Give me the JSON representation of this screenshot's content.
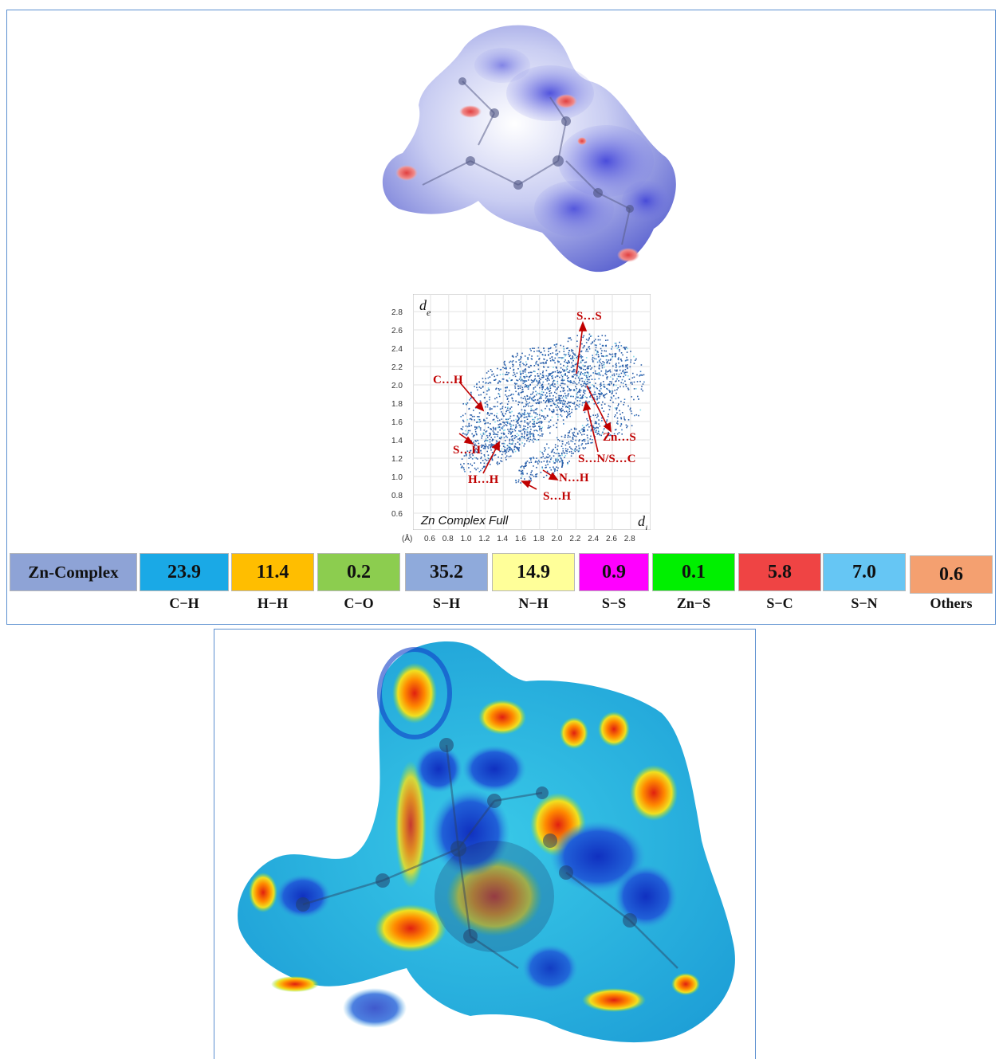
{
  "fingerprint": {
    "title": "Zn Complex Full",
    "de_label": "d",
    "de_sub": "e",
    "di_label": "d",
    "di_sub": "i",
    "unit": "(Å)",
    "y_ticks": [
      "2.8",
      "2.6",
      "2.4",
      "2.2",
      "2.0",
      "1.8",
      "1.6",
      "1.4",
      "1.2",
      "1.0",
      "0.8",
      "0.6"
    ],
    "x_ticks": [
      "0.6",
      "0.8",
      "1.0",
      "1.2",
      "1.4",
      "1.6",
      "1.8",
      "2.0",
      "2.2",
      "2.4",
      "2.6",
      "2.8"
    ],
    "annotations": [
      "S…S",
      "C…H",
      "Zn…S",
      "S…H",
      "S…N/S…C",
      "H…H",
      "N…H",
      "S…H"
    ]
  },
  "legend": {
    "row_label": "Zn-Complex",
    "cells": [
      {
        "value": "23.9",
        "label": "C−H",
        "color": "#1aa9e6"
      },
      {
        "value": "11.4",
        "label": "H−H",
        "color": "#ffbe00"
      },
      {
        "value": "0.2",
        "label": "C−O",
        "color": "#8ccd4f"
      },
      {
        "value": "35.2",
        "label": "S−H",
        "color": "#8faadb"
      },
      {
        "value": "14.9",
        "label": "N−H",
        "color": "#ffff99"
      },
      {
        "value": "0.9",
        "label": "S−S",
        "color": "#ff00ff"
      },
      {
        "value": "0.1",
        "label": "Zn−S",
        "color": "#00f000"
      },
      {
        "value": "5.8",
        "label": "S−C",
        "color": "#ef4444"
      },
      {
        "value": "7.0",
        "label": "S−N",
        "color": "#66c6f4"
      },
      {
        "value": "0.6",
        "label": "Others",
        "color": "#f4a070"
      }
    ],
    "row_label_color": "#8ea3d6"
  }
}
